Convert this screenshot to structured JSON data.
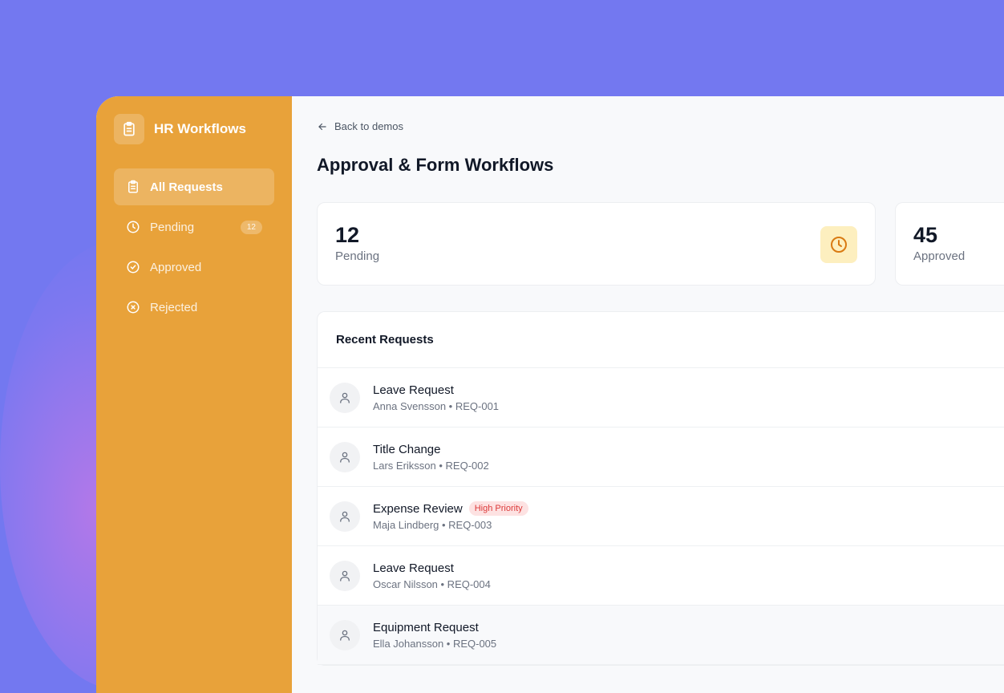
{
  "sidebar": {
    "title": "HR Workflows",
    "items": [
      {
        "label": "All Requests",
        "icon": "clipboard-icon",
        "active": true
      },
      {
        "label": "Pending",
        "icon": "clock-icon",
        "badge": "12"
      },
      {
        "label": "Approved",
        "icon": "check-circle-icon"
      },
      {
        "label": "Rejected",
        "icon": "x-circle-icon"
      }
    ]
  },
  "main": {
    "back_label": "Back to demos",
    "title": "Approval & Form Workflows",
    "stats": [
      {
        "value": "12",
        "label": "Pending"
      },
      {
        "value": "45",
        "label": "Approved"
      }
    ],
    "recent": {
      "title": "Recent Requests",
      "rows": [
        {
          "title": "Leave Request",
          "sub": "Anna Svensson • REQ-001"
        },
        {
          "title": "Title Change",
          "sub": "Lars Eriksson • REQ-002"
        },
        {
          "title": "Expense Review",
          "sub": "Maja Lindberg • REQ-003",
          "tag": "High Priority"
        },
        {
          "title": "Leave Request",
          "sub": "Oscar Nilsson • REQ-004"
        },
        {
          "title": "Equipment Request",
          "sub": "Ella Johansson • REQ-005"
        }
      ]
    }
  },
  "colors": {
    "sidebar": "#e8a23a",
    "background": "#7378f0",
    "priority": "#dc3b3b"
  }
}
